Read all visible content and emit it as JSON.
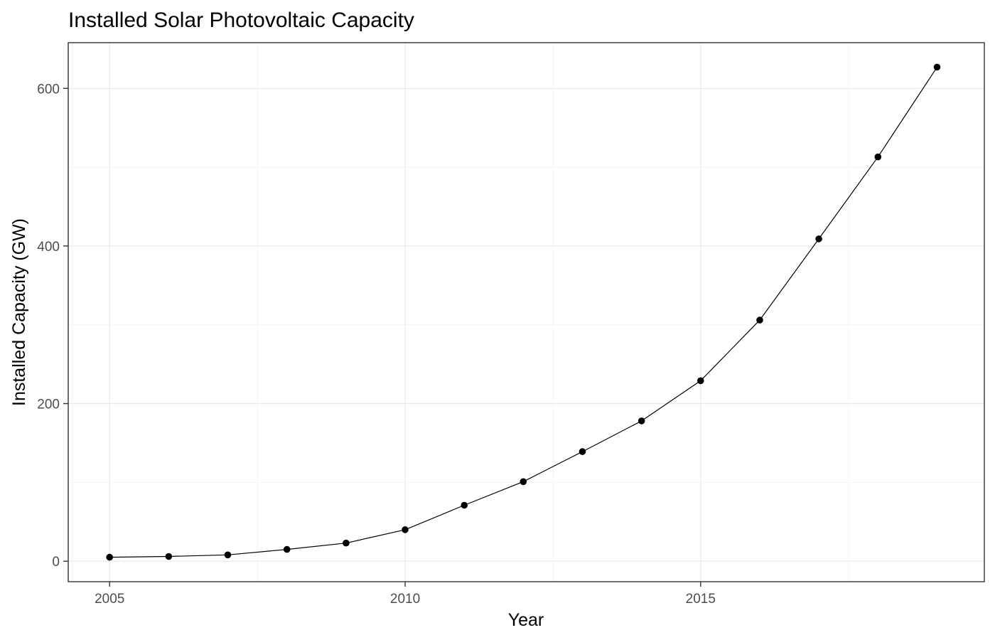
{
  "chart_data": {
    "type": "line",
    "title": "Installed Solar Photovoltaic Capacity",
    "xlabel": "Year",
    "ylabel": "Installed Capacity (GW)",
    "x": [
      2005,
      2006,
      2007,
      2008,
      2009,
      2010,
      2011,
      2012,
      2013,
      2014,
      2015,
      2016,
      2017,
      2018,
      2019
    ],
    "values": [
      5,
      6,
      8,
      15,
      23,
      40,
      71,
      101,
      139,
      178,
      229,
      306,
      409,
      513,
      627
    ],
    "xlim": [
      2004.3,
      2019.8
    ],
    "ylim": [
      -26,
      658
    ],
    "x_ticks": [
      2005,
      2010,
      2015
    ],
    "x_tick_labels": [
      "2005",
      "2010",
      "2015"
    ],
    "y_ticks": [
      0,
      200,
      400,
      600
    ],
    "y_tick_labels": [
      "0",
      "200",
      "400",
      "600"
    ],
    "grid": true,
    "line_color": "#000000",
    "point_color": "#000000"
  }
}
